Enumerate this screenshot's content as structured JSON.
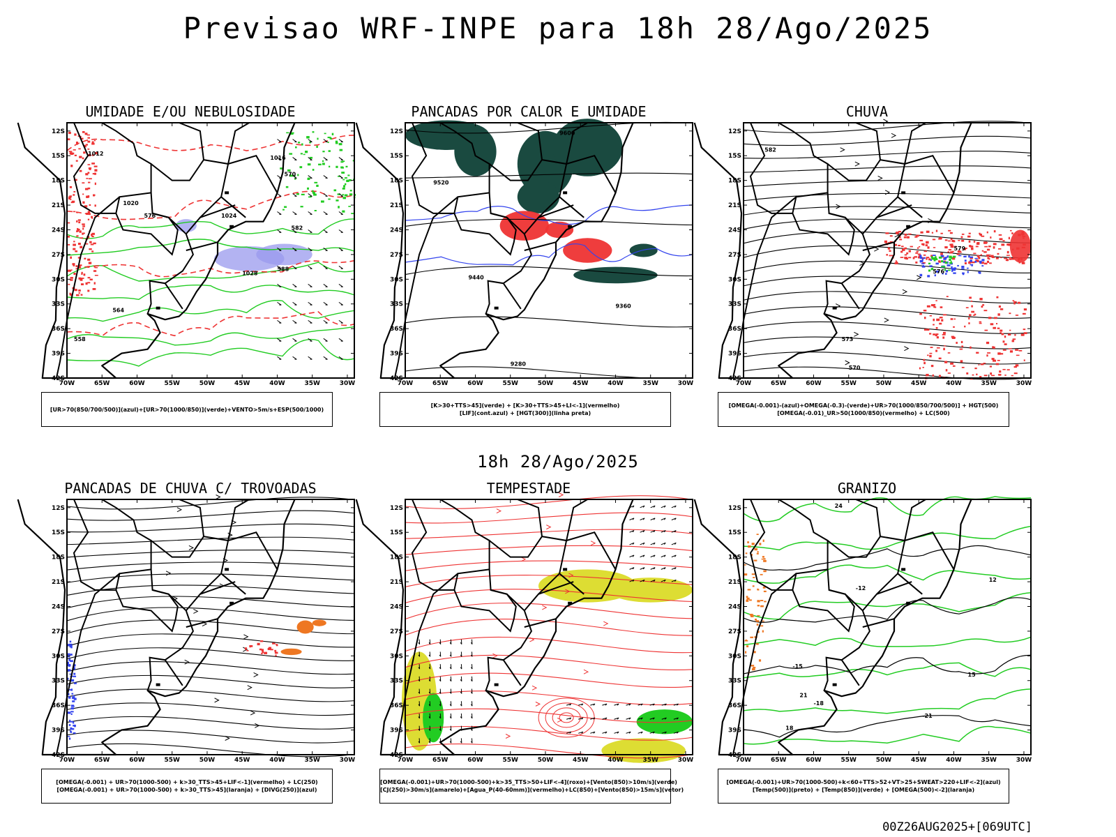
{
  "title": "Previsao WRF-INPE  para 18h 28/Ago/2025",
  "subtitle": "18h 28/Ago/2025",
  "footer": "00Z26AUG2025+[069UTC]",
  "lat_labels": [
    "12S",
    "15S",
    "18S",
    "21S",
    "24S",
    "27S",
    "30S",
    "33S",
    "36S",
    "39S",
    "42S"
  ],
  "lon_labels": [
    "70W",
    "65W",
    "60W",
    "55W",
    "50W",
    "45W",
    "40W",
    "35W",
    "30W"
  ],
  "colors": {
    "red": "#ee3333",
    "green": "#22cc22",
    "blue": "#3344ee",
    "purple": "#9999ee",
    "orange": "#ee7722",
    "yellow": "#dddd33",
    "darkgreen": "#1a4a40",
    "black": "#000000"
  },
  "panels": [
    {
      "title": "UMIDADE E/OU NEBULOSIDADE",
      "legend": [
        "[UR>70(850/700/500)](azul)+[UR>70(1000/850)](verde)+VENTO>5m/s+ESP(500/1000)"
      ],
      "labels": [
        "1012",
        "1016",
        "1020",
        "1024",
        "1028",
        "570",
        "576",
        "582",
        "588",
        "558",
        "564"
      ]
    },
    {
      "title": "PANCADAS POR CALOR E UMIDADE",
      "legend": [
        "[K>30+TTS>45](verde) + [K>30+TTS>45+LI<-1](vermelho)",
        "[LIF](cont.azul) + [HGT(300)](linha preta)"
      ],
      "labels": [
        "9600",
        "9520",
        "9440",
        "9360",
        "9280"
      ]
    },
    {
      "title": "CHUVA",
      "legend": [
        "[OMEGA(-0.001)-(azul)+OMEGA(-0.3)-(verde)+UR>70(1000/850/700/500)] + HGT(500)",
        "[OMEGA(-0.01)_UR>50(1000/850)(vermelho) + LC(500)"
      ],
      "labels": [
        "582",
        "579",
        "576",
        "573",
        "570"
      ]
    },
    {
      "title": "PANCADAS DE CHUVA C/ TROVOADAS",
      "legend": [
        "[OMEGA(-0.001) + UR>70(1000-500) + k>30_TTS>45+LIF<-1](vermelho) + LC(250)",
        "[OMEGA(-0.001) + UR>70(1000-500) + k>30_TTS>45](laranja) + [DIVG(250)](azul)"
      ],
      "labels": []
    },
    {
      "title": "TEMPESTADE",
      "legend": [
        "[OMEGA(-0.001)+UR>70(1000-500)+k>35_TTS>50+LIF<-4](roxo)+[Vento(850)>10m/s](verde)",
        "[CJ(250)>30m/s](amarelo)+[Agua_P(40-60mm)](vermelho)+LC(850)+[Vento(850)>15m/s](vetor)"
      ],
      "labels": []
    },
    {
      "title": "GRANIZO",
      "legend": [
        "[OMEGA(-0.001)+UR>70(1000-500)+k<60+TTS>52+VT>25+SWEAT>220+LIF<-2](azul)",
        "[Temp(500)](preto) + [Temp(850)](verde) + [OMEGA(500)<-2](laranja)"
      ],
      "labels": [
        "-12",
        "-15",
        "-18",
        "-21",
        "12",
        "15",
        "18",
        "21",
        "24"
      ]
    }
  ]
}
